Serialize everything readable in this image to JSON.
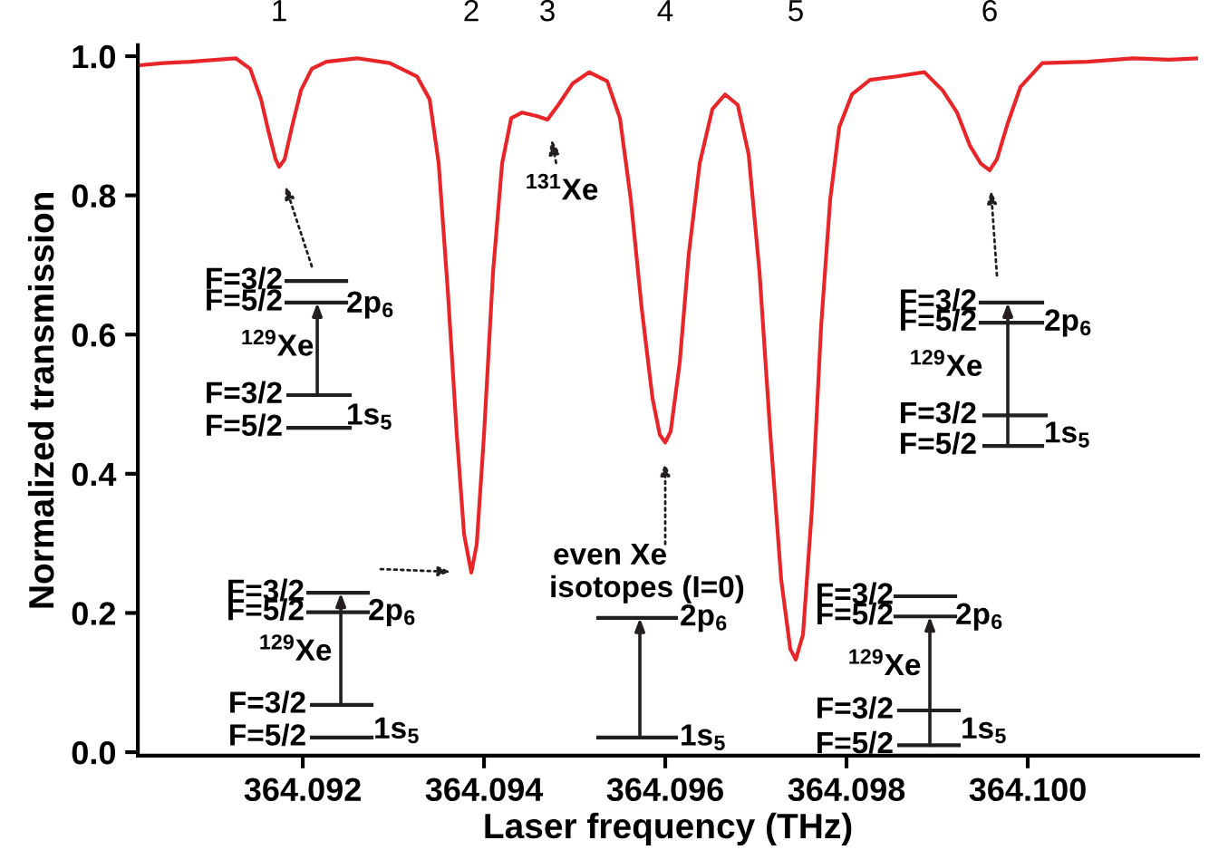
{
  "chart_data": {
    "type": "line",
    "xlabel": "Laser frequency (THz)",
    "ylabel": "Normalized transmission",
    "xlim": [
      364.09018,
      364.10188
    ],
    "ylim": [
      -0.005,
      1.016
    ],
    "xticks": [
      364.092,
      364.094,
      364.096,
      364.098,
      {
        "value": 364.1,
        "label": "364.100"
      }
    ],
    "yticks": [
      {
        "value": 0,
        "label": "0.0"
      },
      {
        "value": 0.2,
        "label": "0.2"
      },
      {
        "value": 0.4,
        "label": "0.4"
      },
      {
        "value": 0.6,
        "label": "0.6"
      },
      {
        "value": 0.8,
        "label": "0.8"
      },
      {
        "value": 1.0,
        "label": "1.0"
      }
    ],
    "grid": false,
    "marker": "none",
    "line_style": "solid",
    "series": [
      {
        "color": "#e8262a",
        "x": [
          364.0902,
          364.09046,
          364.09076,
          364.09106,
          364.09126,
          364.09142,
          364.09154,
          364.09162,
          364.0917,
          364.09174,
          364.0918,
          364.09188,
          364.09198,
          364.0921,
          364.09226,
          364.0926,
          364.09296,
          364.09326,
          364.0934,
          364.0935,
          364.0936,
          364.0937,
          364.09378,
          364.09386,
          364.09392,
          364.094,
          364.0941,
          364.0942,
          364.0943,
          364.09442,
          364.09458,
          364.0947,
          364.09482,
          364.09498,
          364.09516,
          364.09536,
          364.0955,
          364.09562,
          364.09574,
          364.09586,
          364.09594,
          364.096,
          364.09606,
          364.09616,
          364.09626,
          364.09638,
          364.09652,
          364.09666,
          364.0968,
          364.09692,
          364.09704,
          364.09716,
          364.09728,
          364.09738,
          364.09744,
          364.09752,
          364.09762,
          364.09772,
          364.09782,
          364.09792,
          364.09806,
          364.09826,
          364.09856,
          364.09886,
          364.09906,
          364.09922,
          364.09936,
          364.09948,
          364.09958,
          364.09966,
          364.09978,
          364.09992,
          364.10016,
          364.10066,
          364.10116,
          364.10156,
          364.10188
        ],
        "values": [
          0.987,
          0.99,
          0.992,
          0.995,
          0.997,
          0.982,
          0.938,
          0.893,
          0.852,
          0.841,
          0.852,
          0.898,
          0.951,
          0.982,
          0.992,
          0.997,
          0.99,
          0.971,
          0.938,
          0.846,
          0.664,
          0.456,
          0.313,
          0.258,
          0.299,
          0.456,
          0.69,
          0.846,
          0.911,
          0.919,
          0.914,
          0.909,
          0.93,
          0.961,
          0.977,
          0.964,
          0.911,
          0.794,
          0.638,
          0.508,
          0.456,
          0.445,
          0.461,
          0.56,
          0.716,
          0.846,
          0.924,
          0.945,
          0.93,
          0.859,
          0.69,
          0.456,
          0.247,
          0.148,
          0.133,
          0.169,
          0.352,
          0.612,
          0.794,
          0.898,
          0.945,
          0.966,
          0.971,
          0.977,
          0.951,
          0.919,
          0.872,
          0.846,
          0.836,
          0.852,
          0.904,
          0.956,
          0.99,
          0.992,
          0.997,
          0.995,
          0.997
        ]
      }
    ],
    "annotations": [
      "1",
      "2",
      "3",
      "4",
      "5",
      "6",
      "F=3/2",
      "F=5/2",
      "2p$_{6}$",
      "$^{129}$Xe",
      "F=3/2",
      "F=5/2",
      "1s$_{5}$",
      "F=3/2",
      "F=5/2",
      "2p$_{6}$",
      "$^{129}$Xe",
      "F=3/2",
      "F=5/2",
      "1s$_{5}$",
      "even Xe",
      "isotopes (I=0)",
      "2p$_{6}$",
      "1s$_{5}$",
      "F=3/2",
      "F=5/2",
      "2p$_{6}$",
      "$^{129}$Xe",
      "F=3/2",
      "F=5/2",
      "1s$_{5}$",
      "F=3/2",
      "F=5/2",
      "2p$_{6}$",
      "$^{129}$Xe",
      "F=3/2",
      "F=5/2",
      "1s$_{5}$",
      {
        "text": "$^{131}$Xe",
        "x": 364.0947,
        "y": 0.909
      }
    ]
  }
}
